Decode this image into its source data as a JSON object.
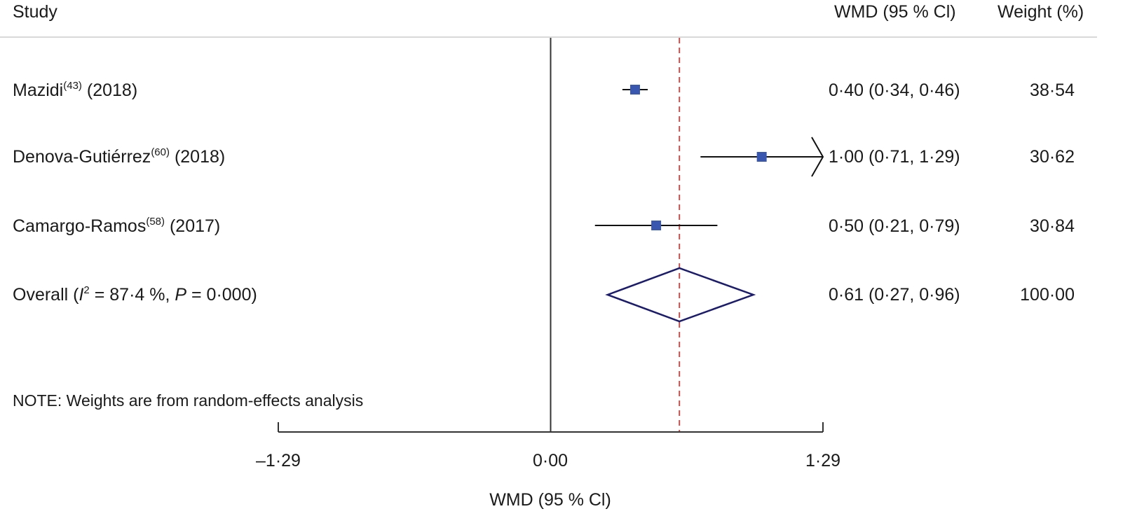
{
  "chart_data": {
    "type": "forest",
    "columns": {
      "study": "Study",
      "effect": "WMD (95 % Cl)",
      "weight": "Weight (%)"
    },
    "studies": [
      {
        "name": "Mazidi",
        "ref": "(43)",
        "year": "(2018)",
        "effect": 0.4,
        "ci_low": 0.34,
        "ci_high": 0.46,
        "effect_label": "0·40 (0·34, 0·46)",
        "weight": "38·54",
        "ci_truncated_high": false
      },
      {
        "name": "Denova-Gutiérrez",
        "ref": "(60)",
        "year": "(2018)",
        "effect": 1.0,
        "ci_low": 0.71,
        "ci_high": 1.29,
        "effect_label": "1·00 (0·71, 1·29)",
        "weight": "30·62",
        "ci_truncated_high": true
      },
      {
        "name": "Camargo-Ramos",
        "ref": "(58)",
        "year": "(2017)",
        "effect": 0.5,
        "ci_low": 0.21,
        "ci_high": 0.79,
        "effect_label": "0·50 (0·21, 0·79)",
        "weight": "30·84",
        "ci_truncated_high": false
      }
    ],
    "overall": {
      "prefix": "Overall (",
      "i2_symbol": "I",
      "i2_exp": "2",
      "i2_text": " = 87·4 %, ",
      "p_symbol": "P",
      "p_text": " = 0·000)",
      "effect": 0.61,
      "ci_low": 0.27,
      "ci_high": 0.96,
      "effect_label": "0·61 (0·27, 0·96)",
      "weight": "100·00"
    },
    "note": "NOTE: Weights are from random-effects analysis",
    "xlim": [
      -1.29,
      1.29
    ],
    "xticks": [
      -1.29,
      0.0,
      1.29
    ],
    "xtick_labels": [
      "–1·29",
      "0·00",
      "1·29"
    ],
    "xlabel": "WMD (95 % Cl)",
    "reference_line": 0,
    "pooled_line": 0.61,
    "colors": {
      "marker": "#3a57b0",
      "diamond": "#1c1c6e",
      "pooled_line": "#c0504d",
      "axis": "#333333",
      "header_rule": "#d9d9d9"
    }
  }
}
